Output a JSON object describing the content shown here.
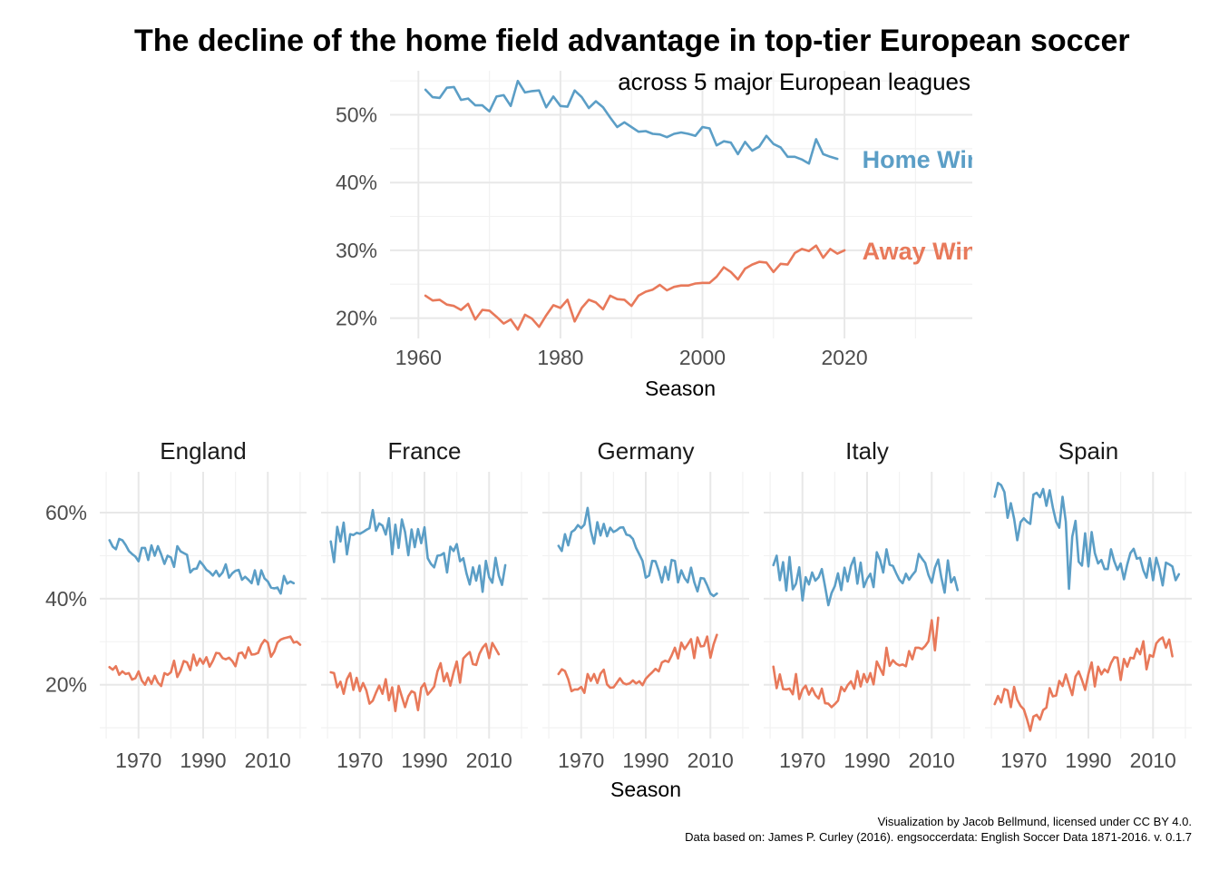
{
  "title": "The decline of the home field advantage in top-tier European soccer",
  "caption": {
    "line1": "Visualization by Jacob Bellmund, licensed under CC BY 4.0.",
    "line2": "Data based on: James P. Curley (2016). engsoccerdata: English Soccer Data 1871-2016. v. 0.1.7"
  },
  "colors": {
    "home": "#5b9ec6",
    "away": "#e8795a"
  },
  "chart_data": [
    {
      "type": "line",
      "subtitle": "across 5 major European leagues",
      "xlabel": "Season",
      "ylabel": "",
      "xlim": [
        1956,
        2038
      ],
      "ylim": [
        17,
        56.5
      ],
      "x_ticks": [
        "1960",
        "1980",
        "2000",
        "2020"
      ],
      "x_tick_values": [
        1960,
        1980,
        2000,
        2020
      ],
      "y_ticks": [
        "20%",
        "30%",
        "40%",
        "50%"
      ],
      "y_tick_values": [
        20,
        30,
        40,
        50
      ],
      "grid": true,
      "legend": "direct labels at right end of lines",
      "end_labels": [
        "Home Win",
        "Away Win"
      ],
      "x_start": 1961,
      "series": [
        {
          "name": "Home Win",
          "color": "#5b9ec6",
          "values": [
            53.7,
            52.6,
            52.5,
            54.0,
            54.1,
            52.2,
            52.4,
            51.4,
            51.4,
            50.5,
            52.7,
            52.9,
            51.3,
            55.0,
            53.3,
            53.5,
            53.6,
            51.1,
            52.7,
            51.3,
            51.2,
            53.6,
            52.6,
            51.0,
            52.0,
            51.1,
            49.6,
            48.2,
            48.9,
            48.2,
            47.5,
            47.6,
            47.2,
            47.1,
            46.7,
            47.2,
            47.4,
            47.2,
            46.9,
            48.2,
            48.0,
            45.5,
            46.1,
            45.9,
            44.2,
            46.0,
            44.7,
            45.3,
            46.9,
            45.7,
            45.2,
            43.8,
            43.8,
            43.4,
            42.8,
            46.4,
            44.2,
            43.8,
            43.5
          ]
        },
        {
          "name": "Away Win",
          "color": "#e8795a",
          "values": [
            23.3,
            22.6,
            22.7,
            22.0,
            21.8,
            21.2,
            22.1,
            19.8,
            21.2,
            21.1,
            20.2,
            19.2,
            19.8,
            18.3,
            20.5,
            19.9,
            18.7,
            20.4,
            21.9,
            21.5,
            22.7,
            19.5,
            21.5,
            22.7,
            22.3,
            21.3,
            23.3,
            22.8,
            22.7,
            21.8,
            23.3,
            23.9,
            24.2,
            24.9,
            24.1,
            24.6,
            24.8,
            24.8,
            25.1,
            25.2,
            25.2,
            26.1,
            27.5,
            26.8,
            25.7,
            27.3,
            27.9,
            28.3,
            28.2,
            26.8,
            28.0,
            27.9,
            29.6,
            30.2,
            29.9,
            30.7,
            28.9,
            30.2,
            29.5,
            30.0
          ]
        }
      ]
    },
    {
      "type": "line",
      "facets": [
        "England",
        "France",
        "Germany",
        "Italy",
        "Spain"
      ],
      "xlabel": "Season",
      "ylabel": "",
      "xlim": [
        1958,
        2022
      ],
      "ylim": [
        7.5,
        69.5
      ],
      "x_ticks": [
        "1970",
        "1990",
        "2010"
      ],
      "x_tick_values": [
        1970,
        1990,
        2010
      ],
      "y_ticks": [
        "20%",
        "40%",
        "60%"
      ],
      "y_tick_values": [
        20,
        40,
        60
      ],
      "grid": true,
      "panels": [
        {
          "name": "England",
          "x_start": 1961,
          "series": [
            {
              "name": "Home Win",
              "color": "#5b9ec6",
              "values": [
                53.6,
                52.1,
                51.5,
                53.9,
                53.6,
                52.5,
                51.1,
                50.4,
                49.8,
                48.7,
                51.8,
                51.8,
                49.0,
                52.4,
                50.0,
                52.2,
                50.3,
                48.1,
                50.0,
                49.6,
                47.4,
                52.2,
                51.0,
                50.6,
                50.2,
                46.1,
                46.9,
                47.0,
                48.7,
                47.8,
                46.7,
                46.2,
                45.4,
                46.5,
                45.2,
                46.1,
                48.0,
                44.9,
                45.9,
                46.5,
                46.7,
                44.4,
                45.1,
                44.4,
                43.6,
                46.6,
                43.3,
                46.6,
                44.7,
                44.0,
                42.6,
                42.4,
                42.6,
                41.2,
                45.3,
                43.5,
                44.0,
                43.6
              ]
            },
            {
              "name": "Away Win",
              "color": "#e8795a",
              "values": [
                24.1,
                23.5,
                24.3,
                22.3,
                23.1,
                22.5,
                22.7,
                21.2,
                21.5,
                23.1,
                21.0,
                20.0,
                21.7,
                20.2,
                22.1,
                20.5,
                19.7,
                22.7,
                22.3,
                22.9,
                25.6,
                21.8,
                23.3,
                25.5,
                25.2,
                23.4,
                27.0,
                24.5,
                26.1,
                24.9,
                26.4,
                24.2,
                25.6,
                27.4,
                27.3,
                26.2,
                25.9,
                26.3,
                25.5,
                24.3,
                27.3,
                27.5,
                26.2,
                28.7,
                27.0,
                27.1,
                27.4,
                29.3,
                30.4,
                29.8,
                26.5,
                27.7,
                29.8,
                30.5,
                30.8,
                31.0,
                31.2,
                29.8,
                30.0,
                29.3
              ]
            }
          ]
        },
        {
          "name": "France",
          "x_start": 1961,
          "series": [
            {
              "name": "Home Win",
              "color": "#5b9ec6",
              "values": [
                53.3,
                48.5,
                56.7,
                53.3,
                57.7,
                50.3,
                55.0,
                54.8,
                55.3,
                55.1,
                55.5,
                56.0,
                56.4,
                60.6,
                55.8,
                57.5,
                57.0,
                54.9,
                58.7,
                50.3,
                57.2,
                51.8,
                58.4,
                55.5,
                50.1,
                56.1,
                52.0,
                56.2,
                52.9,
                56.6,
                49.4,
                48.1,
                47.3,
                50.0,
                50.1,
                50.6,
                46.1,
                52.1,
                51.1,
                52.7,
                48.7,
                49.4,
                45.9,
                43.3,
                47.3,
                44.2,
                47.7,
                41.6,
                48.8,
                45.0,
                43.7,
                49.5,
                45.4,
                43.2,
                47.8
              ]
            },
            {
              "name": "Away Win",
              "color": "#e8795a",
              "values": [
                22.9,
                22.7,
                19.4,
                20.7,
                17.9,
                21.3,
                22.7,
                18.8,
                21.6,
                18.5,
                20.4,
                18.7,
                15.6,
                16.3,
                18.2,
                19.8,
                17.9,
                21.3,
                16.4,
                19.4,
                13.9,
                19.7,
                17.2,
                14.8,
                17.3,
                18.5,
                18.1,
                14.1,
                19.3,
                20.3,
                17.7,
                18.6,
                19.6,
                23.1,
                25.0,
                20.8,
                22.7,
                19.8,
                22.9,
                25.4,
                20.5,
                26.1,
                26.9,
                27.6,
                24.8,
                24.6,
                27.2,
                28.6,
                29.5,
                26.2,
                29.7,
                28.4,
                27.1
              ]
            }
          ]
        },
        {
          "name": "Germany",
          "x_start": 1963,
          "series": [
            {
              "name": "Home Win",
              "color": "#5b9ec6",
              "values": [
                52.3,
                51.1,
                55.0,
                52.4,
                55.5,
                56.0,
                57.1,
                56.4,
                57.2,
                61.1,
                55.8,
                52.8,
                57.8,
                54.7,
                57.4,
                54.5,
                56.5,
                55.5,
                55.9,
                56.5,
                56.6,
                54.9,
                54.7,
                53.9,
                51.8,
                50.3,
                48.8,
                44.9,
                45.4,
                48.8,
                48.7,
                46.5,
                43.8,
                47.4,
                44.4,
                49.0,
                48.8,
                43.8,
                46.6,
                44.8,
                43.8,
                47.2,
                43.9,
                41.7,
                44.8,
                44.7,
                43.1,
                41.2,
                40.6,
                41.2
              ]
            },
            {
              "name": "Away Win",
              "color": "#e8795a",
              "values": [
                22.5,
                23.6,
                23.2,
                21.3,
                18.5,
                18.9,
                18.9,
                19.5,
                18.1,
                22.5,
                20.9,
                22.5,
                20.4,
                22.6,
                23.5,
                20.1,
                19.3,
                19.4,
                20.4,
                21.5,
                20.4,
                20.1,
                20.3,
                21.0,
                20.3,
                20.8,
                19.9,
                21.4,
                22.2,
                22.9,
                23.7,
                23.1,
                25.2,
                25.6,
                25.3,
                26.8,
                28.6,
                26.1,
                29.8,
                28.3,
                29.4,
                30.6,
                26.2,
                31.0,
                28.9,
                29.0,
                31.2,
                26.3,
                29.4,
                31.6
              ]
            }
          ]
        },
        {
          "name": "Italy",
          "x_start": 1961,
          "series": [
            {
              "name": "Home Win",
              "color": "#5b9ec6",
              "values": [
                47.8,
                50.0,
                44.3,
                48.5,
                41.9,
                49.7,
                42.2,
                43.5,
                47.3,
                39.6,
                45.0,
                43.3,
                46.1,
                44.2,
                45.0,
                46.9,
                42.8,
                38.5,
                41.3,
                42.9,
                45.9,
                42.0,
                47.2,
                44.0,
                47.6,
                49.5,
                43.5,
                48.4,
                42.7,
                44.6,
                45.8,
                42.7,
                50.8,
                49.0,
                46.1,
                51.5,
                47.9,
                47.6,
                45.9,
                44.4,
                43.6,
                45.8,
                44.4,
                45.5,
                46.4,
                50.4,
                49.3,
                48.3,
                45.5,
                43.7,
                47.2,
                49.1,
                44.9,
                41.4,
                48.9,
                43.8,
                45.0,
                42.0
              ]
            },
            {
              "name": "Away Win",
              "color": "#e8795a",
              "values": [
                24.2,
                19.2,
                22.4,
                19.0,
                18.9,
                19.1,
                17.8,
                22.5,
                16.7,
                18.9,
                19.8,
                17.7,
                19.2,
                17.6,
                16.8,
                19.1,
                15.7,
                15.6,
                14.8,
                15.5,
                16.3,
                19.5,
                18.5,
                19.9,
                20.8,
                19.1,
                23.2,
                19.6,
                22.5,
                20.6,
                22.7,
                20.1,
                25.4,
                23.8,
                22.3,
                28.6,
                24.4,
                25.7,
                24.9,
                24.5,
                24.7,
                24.3,
                27.8,
                25.9,
                28.6,
                28.6,
                28.3,
                29.0,
                30.1,
                35.0,
                28.0,
                35.6
              ]
            }
          ]
        },
        {
          "name": "Spain",
          "x_start": 1961,
          "series": [
            {
              "name": "Home Win",
              "color": "#5b9ec6",
              "values": [
                63.7,
                66.9,
                66.4,
                64.8,
                58.8,
                62.2,
                58.6,
                53.6,
                57.8,
                58.7,
                57.9,
                57.4,
                64.2,
                64.6,
                63.6,
                65.5,
                61.6,
                65.2,
                61.2,
                57.9,
                56.5,
                63.7,
                57.9,
                42.3,
                54.4,
                58.1,
                48.6,
                47.7,
                55.2,
                47.5,
                55.5,
                50.6,
                48.2,
                49.0,
                46.9,
                46.9,
                51.5,
                48.7,
                46.7,
                48.2,
                44.5,
                47.9,
                50.6,
                51.6,
                49.3,
                49.5,
                46.6,
                44.9,
                49.4,
                44.3,
                49.5,
                46.8,
                43.1,
                48.4,
                48.0,
                47.5,
                44.3,
                45.7
              ]
            },
            {
              "name": "Away Win",
              "color": "#e8795a",
              "values": [
                15.5,
                17.4,
                15.9,
                19.0,
                18.7,
                14.8,
                19.5,
                16.5,
                15.1,
                14.3,
                12.0,
                9.3,
                12.6,
                13.0,
                11.9,
                14.1,
                14.7,
                19.2,
                17.3,
                17.5,
                20.9,
                19.7,
                22.4,
                20.0,
                17.6,
                21.9,
                23.1,
                21.1,
                18.8,
                22.5,
                25.2,
                19.6,
                24.2,
                22.4,
                23.6,
                22.9,
                25.0,
                26.4,
                26.3,
                21.1,
                26.0,
                24.2,
                26.3,
                26.1,
                28.4,
                27.1,
                30.1,
                23.6,
                26.9,
                26.5,
                29.6,
                30.5,
                31.0,
                28.6,
                30.5,
                26.6
              ]
            }
          ]
        }
      ]
    }
  ]
}
